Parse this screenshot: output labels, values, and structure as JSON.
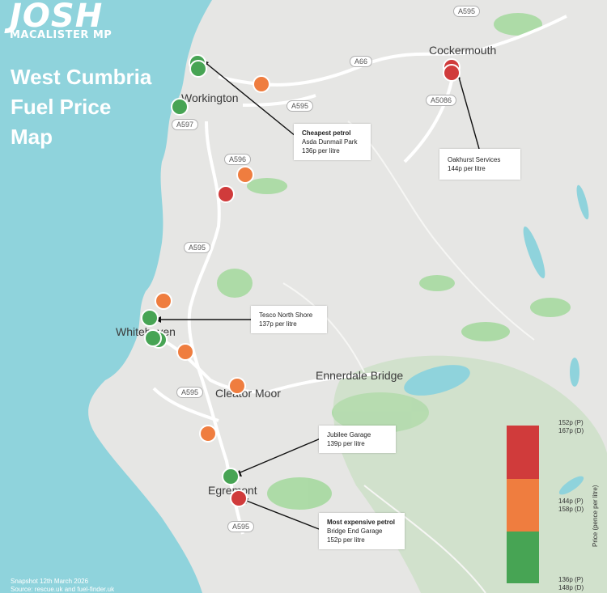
{
  "branding": {
    "logo_main": "JOSH",
    "logo_sub": "MACALISTER MP"
  },
  "title_lines": [
    "West Cumbria",
    "Fuel Price",
    "Map"
  ],
  "towns": [
    "Workington",
    "Cockermouth",
    "Whitehaven",
    "Cleator Moor",
    "Ennerdale Bridge",
    "Egremont"
  ],
  "roads": [
    "A595",
    "A66",
    "A595",
    "A5086",
    "A597",
    "A596",
    "A595",
    "A595",
    "A595"
  ],
  "callouts": [
    {
      "heading": "Cheapest petrol",
      "lines": [
        "Asda Dunmail Park",
        "136p per litre"
      ]
    },
    {
      "heading": "",
      "lines": [
        "Oakhurst Services",
        "144p per litre"
      ]
    },
    {
      "heading": "",
      "lines": [
        "Tesco North Shore",
        "137p per litre"
      ]
    },
    {
      "heading": "",
      "lines": [
        "Jubilee Garage",
        "139p per litre"
      ]
    },
    {
      "heading": "Most expensive petrol",
      "lines": [
        "Bridge End Garage",
        "152p per litre"
      ]
    }
  ],
  "markers": [
    {
      "band": "green"
    },
    {
      "band": "green"
    },
    {
      "band": "orange"
    },
    {
      "band": "green"
    },
    {
      "band": "orange"
    },
    {
      "band": "red"
    },
    {
      "band": "red"
    },
    {
      "band": "red"
    },
    {
      "band": "orange"
    },
    {
      "band": "green"
    },
    {
      "band": "green"
    },
    {
      "band": "green"
    },
    {
      "band": "orange"
    },
    {
      "band": "orange"
    },
    {
      "band": "orange"
    },
    {
      "band": "green"
    },
    {
      "band": "red"
    }
  ],
  "legend": {
    "axis_title": "Price (pence per litre)",
    "bands": [
      {
        "band": "red",
        "color": "#d03b3b"
      },
      {
        "band": "orange",
        "color": "#ef7d3f"
      },
      {
        "band": "green",
        "color": "#47a454"
      }
    ],
    "labels": [
      [
        "152p (P)",
        "167p (D)"
      ],
      [
        "144p (P)",
        "158p (D)"
      ],
      [
        "136p (P)",
        "148p (D)"
      ]
    ]
  },
  "colors": {
    "green": "#47a454",
    "orange": "#ef7d3f",
    "red": "#d03b3b",
    "sea": "#8fd3dc",
    "land": "#e6e6e4",
    "forest": "#9ed79a"
  },
  "footer": {
    "snapshot": "Snapshot 12th March 2026",
    "source": "Source: rescue.uk and fuel-finder.uk"
  }
}
